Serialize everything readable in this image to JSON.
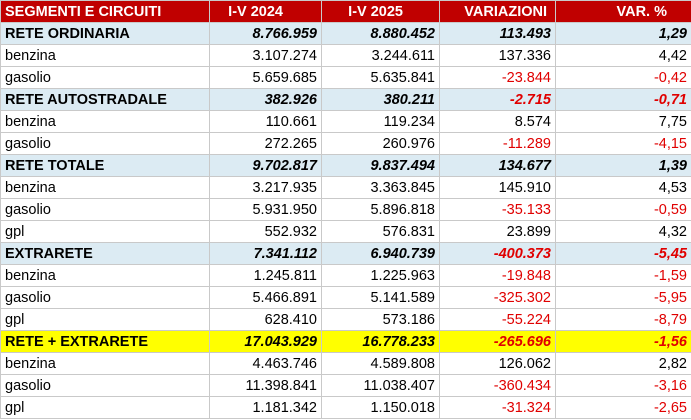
{
  "table": {
    "headers": [
      "SEGMENTI E CIRCUITI",
      "I-V 2024",
      "I-V 2025",
      "VARIAZIONI",
      "VAR. %"
    ],
    "rows": [
      {
        "type": "section",
        "cells": [
          "RETE ORDINARIA",
          "8.766.959",
          "8.880.452",
          "113.493",
          "1,29"
        ]
      },
      {
        "type": "item",
        "cells": [
          "benzina",
          "3.107.274",
          "3.244.611",
          "137.336",
          "4,42"
        ]
      },
      {
        "type": "item",
        "cells": [
          "gasolio",
          "5.659.685",
          "5.635.841",
          "-23.844",
          "-0,42"
        ]
      },
      {
        "type": "section",
        "cells": [
          "RETE AUTOSTRADALE",
          "382.926",
          "380.211",
          "-2.715",
          "-0,71"
        ]
      },
      {
        "type": "item",
        "cells": [
          "benzina",
          "110.661",
          "119.234",
          "8.574",
          "7,75"
        ]
      },
      {
        "type": "item",
        "cells": [
          "gasolio",
          "272.265",
          "260.976",
          "-11.289",
          "-4,15"
        ]
      },
      {
        "type": "section",
        "cells": [
          "RETE TOTALE",
          "9.702.817",
          "9.837.494",
          "134.677",
          "1,39"
        ]
      },
      {
        "type": "item",
        "cells": [
          "benzina",
          "3.217.935",
          "3.363.845",
          "145.910",
          "4,53"
        ]
      },
      {
        "type": "item",
        "cells": [
          "gasolio",
          "5.931.950",
          "5.896.818",
          "-35.133",
          "-0,59"
        ]
      },
      {
        "type": "item",
        "cells": [
          "gpl",
          "552.932",
          "576.831",
          "23.899",
          "4,32"
        ]
      },
      {
        "type": "section",
        "cells": [
          "EXTRARETE",
          "7.341.112",
          "6.940.739",
          "-400.373",
          "-5,45"
        ]
      },
      {
        "type": "item",
        "cells": [
          "benzina",
          "1.245.811",
          "1.225.963",
          "-19.848",
          "-1,59"
        ]
      },
      {
        "type": "item",
        "cells": [
          "gasolio",
          "5.466.891",
          "5.141.589",
          "-325.302",
          "-5,95"
        ]
      },
      {
        "type": "item",
        "cells": [
          "gpl",
          "628.410",
          "573.186",
          "-55.224",
          "-8,79"
        ]
      },
      {
        "type": "total",
        "cells": [
          "RETE + EXTRARETE",
          "17.043.929",
          "16.778.233",
          "-265.696",
          "-1,56"
        ]
      },
      {
        "type": "item",
        "cells": [
          "benzina",
          "4.463.746",
          "4.589.808",
          "126.062",
          "2,82"
        ]
      },
      {
        "type": "item",
        "cells": [
          "gasolio",
          "11.398.841",
          "11.038.407",
          "-360.434",
          "-3,16"
        ]
      },
      {
        "type": "item",
        "cells": [
          "gpl",
          "1.181.342",
          "1.150.018",
          "-31.324",
          "-2,65"
        ]
      }
    ]
  },
  "colors": {
    "header_bg": "#c00000",
    "section_bg": "#dcebf3",
    "total_bg": "#ffff00",
    "negative_text": "#e00000"
  }
}
